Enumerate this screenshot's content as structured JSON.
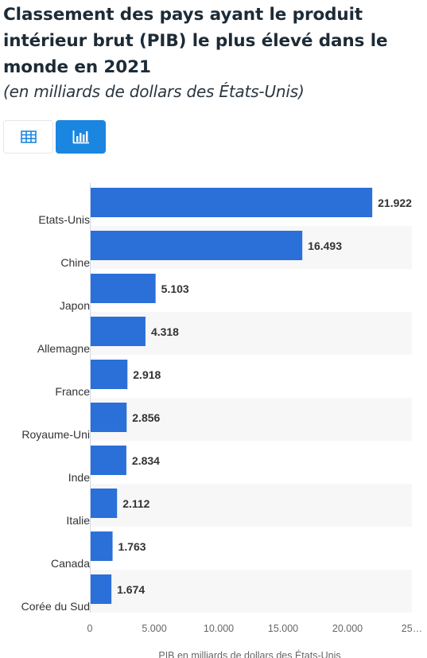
{
  "header": {
    "title": "Classement des pays ayant le produit intérieur brut (PIB) le plus élevé dans le monde en 2021",
    "subtitle": "(en milliards de dollars des États-Unis)"
  },
  "toggles": [
    {
      "icon": "table-icon",
      "active": false
    },
    {
      "icon": "bar-chart-icon",
      "active": true
    }
  ],
  "colors": {
    "bar": "#2b6fd8",
    "accent": "#1a86e0",
    "band": "#f7f7f7"
  },
  "chart_data": {
    "type": "bar",
    "orientation": "horizontal",
    "categories": [
      "Etats-Unis",
      "Chine",
      "Japon",
      "Allemagne",
      "France",
      "Royaume-Uni",
      "Inde",
      "Italie",
      "Canada",
      "Corée du Sud"
    ],
    "values": [
      21922,
      16493,
      5103,
      4318,
      2918,
      2856,
      2834,
      2112,
      1763,
      1674
    ],
    "value_labels": [
      "21.922",
      "16.493",
      "5.103",
      "4.318",
      "2.918",
      "2.856",
      "2.834",
      "2.112",
      "1.763",
      "1.674"
    ],
    "x_ticks": [
      0,
      5000,
      10000,
      15000,
      20000,
      25000
    ],
    "x_tick_labels": [
      "0",
      "5.000",
      "10.000",
      "15.000",
      "20.000",
      "25…"
    ],
    "xlabel": "PIB en milliards de dollars des États-Unis",
    "xlim": [
      0,
      25000
    ],
    "grid": false,
    "legend": "none"
  }
}
